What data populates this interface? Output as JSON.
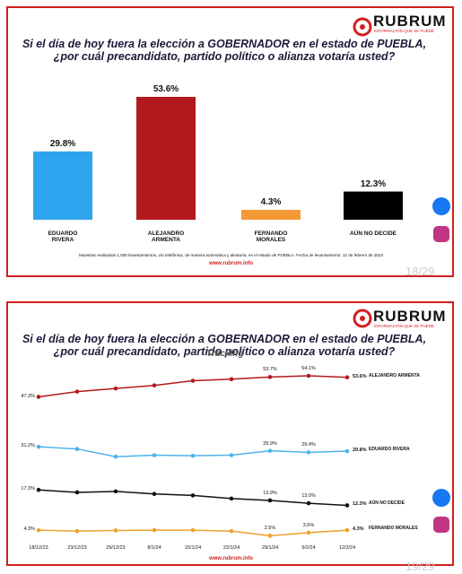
{
  "chart_data": [
    {
      "type": "bar",
      "brand": "RUBRUM",
      "tagline": "INFORMACIÓN QUE SE PUEDE",
      "title": "Si el día de hoy fuera la elección a GOBERNADOR en el estado de PUEBLA,\n¿por cuál precandidato, partido político o alianza votaría usted?",
      "categories": [
        "EDUARDO\nRIVERA",
        "ALEJANDRO\nARMENTA",
        "FERNANDO\nMORALES",
        "AÚN NO DECIDE"
      ],
      "values": [
        29.8,
        53.6,
        4.3,
        12.3
      ],
      "value_labels": [
        "29.8%",
        "53.6%",
        "4.3%",
        "12.3%"
      ],
      "colors": [
        "#2fa4ee",
        "#b3191c",
        "#f39a36",
        "#000000"
      ],
      "note": "Muestras realizadas 1,000 levantamientos, vía telefónica, de manera automática y aleatoria, en el estado de PUEBLA. Fecha de levantamiento: 12 de febrero de 2024",
      "website": "www.rubrum.info",
      "page": "18/29"
    },
    {
      "type": "line",
      "brand": "RUBRUM",
      "tagline": "INFORMACIÓN QUE SE PUEDE",
      "title": "Si el día de hoy fuera la elección a GOBERNADOR en el estado de PUEBLA,\n¿por cuál precandidato, partido político o alianza votaría usted?",
      "subtitle": "Tracking",
      "categories": [
        "18/12/23",
        "23/12/23",
        "29/12/23",
        "8/1/24",
        "15/1/24",
        "22/1/24",
        "29/1/24",
        "5/2/24",
        "12/2/24"
      ],
      "series": [
        {
          "name": "ALEJANDRO ARMENTA",
          "color": "#b3191c",
          "values": [
            47.3,
            49,
            50,
            51,
            52.5,
            53,
            53.7,
            54.1,
            53.6
          ],
          "value_labels": [
            "47.3%",
            null,
            null,
            null,
            null,
            null,
            "53.7%",
            "54.1%",
            "53.6%"
          ]
        },
        {
          "name": "EDUARDO RIVERA",
          "color": "#4fb3e8",
          "values": [
            31.2,
            30.5,
            28,
            28.5,
            28.3,
            28.5,
            29.9,
            29.4,
            29.8
          ],
          "value_labels": [
            "31.2%",
            null,
            null,
            null,
            null,
            null,
            "29.9%",
            "29.4%",
            "29.8%"
          ]
        },
        {
          "name": "AÚN NO DECIDE",
          "color": "#111111",
          "values": [
            17.3,
            16.5,
            16.8,
            16,
            15.5,
            14.5,
            13.9,
            13.0,
            12.3
          ],
          "value_labels": [
            "17.3%",
            null,
            null,
            null,
            null,
            null,
            "13.9%",
            "13.0%",
            "12.3%"
          ]
        },
        {
          "name": "FERNANDO MORALES",
          "color": "#f0a030",
          "values": [
            4.3,
            4,
            4.2,
            4.3,
            4.3,
            4,
            2.5,
            3.5,
            4.3
          ],
          "value_labels": [
            "4.3%",
            null,
            null,
            null,
            null,
            null,
            "2.5%",
            "3.5%",
            "4.3%"
          ]
        }
      ],
      "website": "www.rubrum.info",
      "page": "19/29"
    }
  ]
}
